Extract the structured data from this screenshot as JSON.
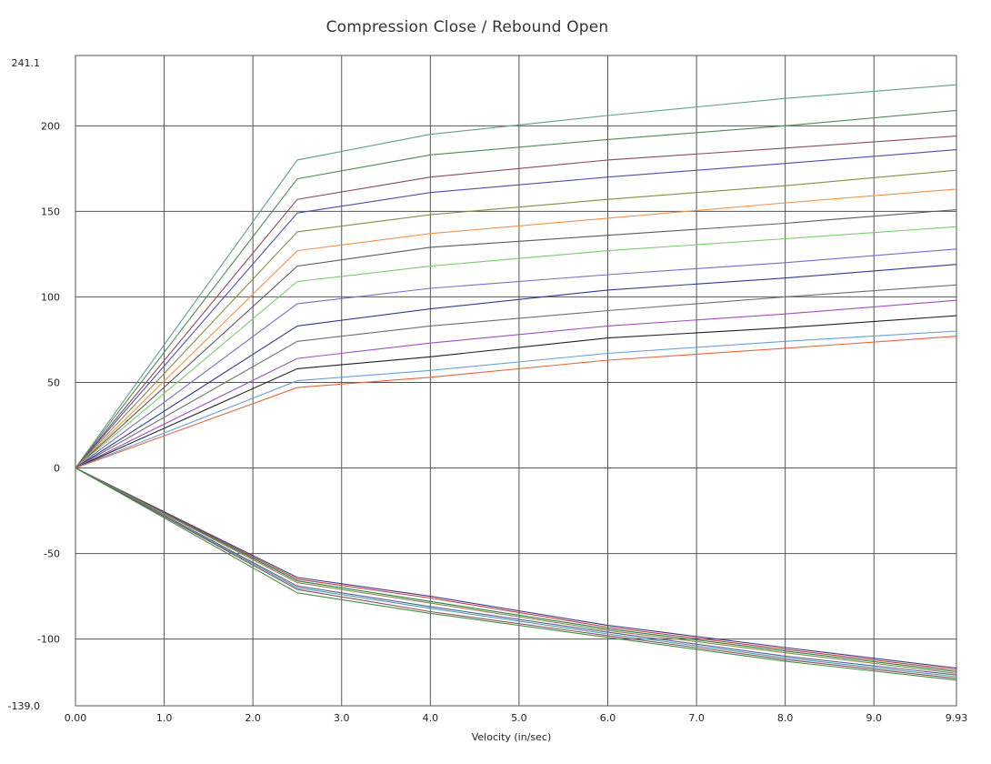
{
  "chart_data": {
    "type": "line",
    "title": "Compression Close / Rebound Open",
    "xlabel": "Velocity (in/sec)",
    "ylabel": "",
    "xlim": [
      0.0,
      9.93
    ],
    "ylim": [
      -139.0,
      241.1
    ],
    "x_ticks": [
      "0.00",
      "1.0",
      "2.0",
      "3.0",
      "4.0",
      "5.0",
      "6.0",
      "7.0",
      "8.0",
      "9.0",
      "9.93"
    ],
    "y_ticks": [
      "241.1",
      "200",
      "150",
      "100",
      "50",
      "0",
      "-50",
      "-100",
      "-139.0"
    ],
    "grid": true,
    "x": [
      0,
      2.5,
      4,
      6,
      8,
      9.93
    ],
    "series": [
      {
        "color": "#5e9e92",
        "values": [
          0,
          180,
          195,
          206,
          216,
          224
        ]
      },
      {
        "color": "#4f8a55",
        "values": [
          0,
          169,
          183,
          192,
          200,
          209
        ]
      },
      {
        "color": "#8d4a60",
        "values": [
          0,
          157,
          170,
          180,
          187,
          194
        ]
      },
      {
        "color": "#4a4fb0",
        "values": [
          0,
          149,
          161,
          170,
          178,
          186
        ]
      },
      {
        "color": "#8a8a45",
        "values": [
          0,
          138,
          148,
          157,
          165,
          174
        ]
      },
      {
        "color": "#f5924a",
        "values": [
          0,
          127,
          137,
          146,
          155,
          163
        ]
      },
      {
        "color": "#5b5b5b",
        "values": [
          0,
          118,
          129,
          136,
          143,
          151
        ]
      },
      {
        "color": "#7acb6f",
        "values": [
          0,
          109,
          118,
          127,
          134,
          141
        ]
      },
      {
        "color": "#7a6cc6",
        "values": [
          0,
          96,
          105,
          113,
          120,
          128
        ]
      },
      {
        "color": "#2f3b8f",
        "values": [
          0,
          83,
          93,
          104,
          111,
          119
        ]
      },
      {
        "color": "#6f6f6f",
        "values": [
          0,
          74,
          83,
          92,
          100,
          107
        ]
      },
      {
        "color": "#a04fc0",
        "values": [
          0,
          64,
          73,
          83,
          90,
          98
        ]
      },
      {
        "color": "#222222",
        "values": [
          0,
          58,
          65,
          76,
          82,
          89
        ]
      },
      {
        "color": "#6a9fd8",
        "values": [
          0,
          51,
          57,
          67,
          74,
          80
        ]
      },
      {
        "color": "#e8643c",
        "values": [
          0,
          47,
          53,
          63,
          70,
          77
        ]
      },
      {
        "color": "#3a3a8a",
        "values": [
          0,
          -64,
          -75,
          -92,
          -105,
          -117
        ]
      },
      {
        "color": "#c04040",
        "values": [
          0,
          -65,
          -76,
          -93,
          -106,
          -118
        ]
      },
      {
        "color": "#2e7d4a",
        "values": [
          0,
          -66,
          -78,
          -94,
          -107,
          -119
        ]
      },
      {
        "color": "#8a8a45",
        "values": [
          0,
          -67,
          -79,
          -95,
          -108,
          -120
        ]
      },
      {
        "color": "#5a5aa0",
        "values": [
          0,
          -69,
          -81,
          -96,
          -110,
          -121
        ]
      },
      {
        "color": "#4fa0a0",
        "values": [
          0,
          -70,
          -82,
          -97,
          -111,
          -122
        ]
      },
      {
        "color": "#8d4a60",
        "values": [
          0,
          -71,
          -84,
          -98,
          -112,
          -123
        ]
      },
      {
        "color": "#3f8f3f",
        "values": [
          0,
          -73,
          -85,
          -99,
          -113,
          -124
        ]
      }
    ]
  }
}
